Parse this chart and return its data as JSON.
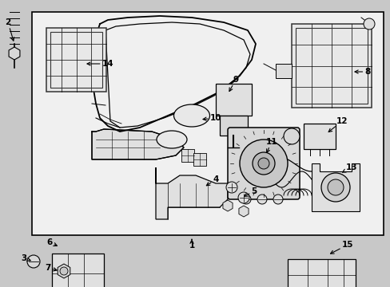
{
  "bg_color": "#c8c8c8",
  "box_bg": "#ebebeb",
  "fig_width": 4.89,
  "fig_height": 3.6,
  "dpi": 100
}
